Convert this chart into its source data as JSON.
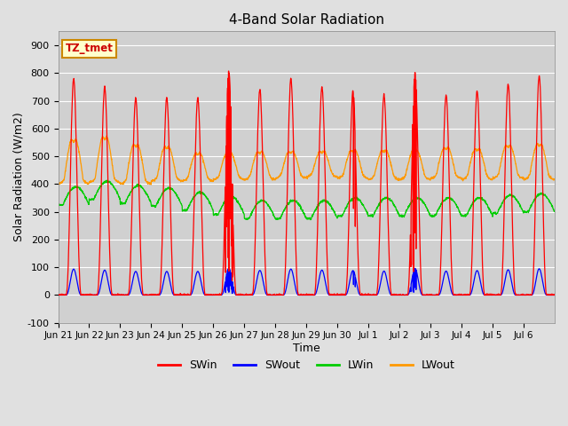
{
  "title": "4-Band Solar Radiation",
  "xlabel": "Time",
  "ylabel": "Solar Radiation (W/m2)",
  "ylim": [
    -100,
    950
  ],
  "yticks": [
    -100,
    0,
    100,
    200,
    300,
    400,
    500,
    600,
    700,
    800,
    900
  ],
  "fig_bg_color": "#e0e0e0",
  "plot_bg_color": "#d0d0d0",
  "grid_color": "#ffffff",
  "legend_labels": [
    "SWin",
    "SWout",
    "LWin",
    "LWout"
  ],
  "line_colors": [
    "#ff0000",
    "#0000ff",
    "#00cc00",
    "#ff9900"
  ],
  "annotation_text": "TZ_tmet",
  "annotation_color": "#cc0000",
  "annotation_bg": "#ffffcc",
  "annotation_border": "#cc8800",
  "n_days": 16,
  "tick_labels": [
    "Jun 21",
    "Jun 22",
    "Jun 23",
    "Jun 24",
    "Jun 25",
    "Jun 26",
    "Jun 27",
    "Jun 28",
    "Jun 29",
    "Jun 30",
    "Jul 1",
    "Jul 2",
    "Jul 3",
    "Jul 4",
    "Jul 5",
    "Jul 6"
  ],
  "sw_peaks": [
    780,
    750,
    710,
    710,
    710,
    805,
    740,
    780,
    750,
    735,
    720,
    800,
    720,
    735,
    760,
    790
  ],
  "lw_in_base": [
    325,
    345,
    330,
    320,
    305,
    290,
    275,
    275,
    275,
    285,
    285,
    285,
    285,
    285,
    295,
    300
  ],
  "lw_out_base": [
    420,
    425,
    420,
    430,
    430,
    435,
    435,
    440,
    445,
    440,
    435,
    435,
    440,
    435,
    440,
    435
  ],
  "lw_out_peak": [
    575,
    585,
    555,
    545,
    520,
    520,
    525,
    525,
    525,
    530,
    530,
    530,
    540,
    535,
    550,
    555
  ]
}
